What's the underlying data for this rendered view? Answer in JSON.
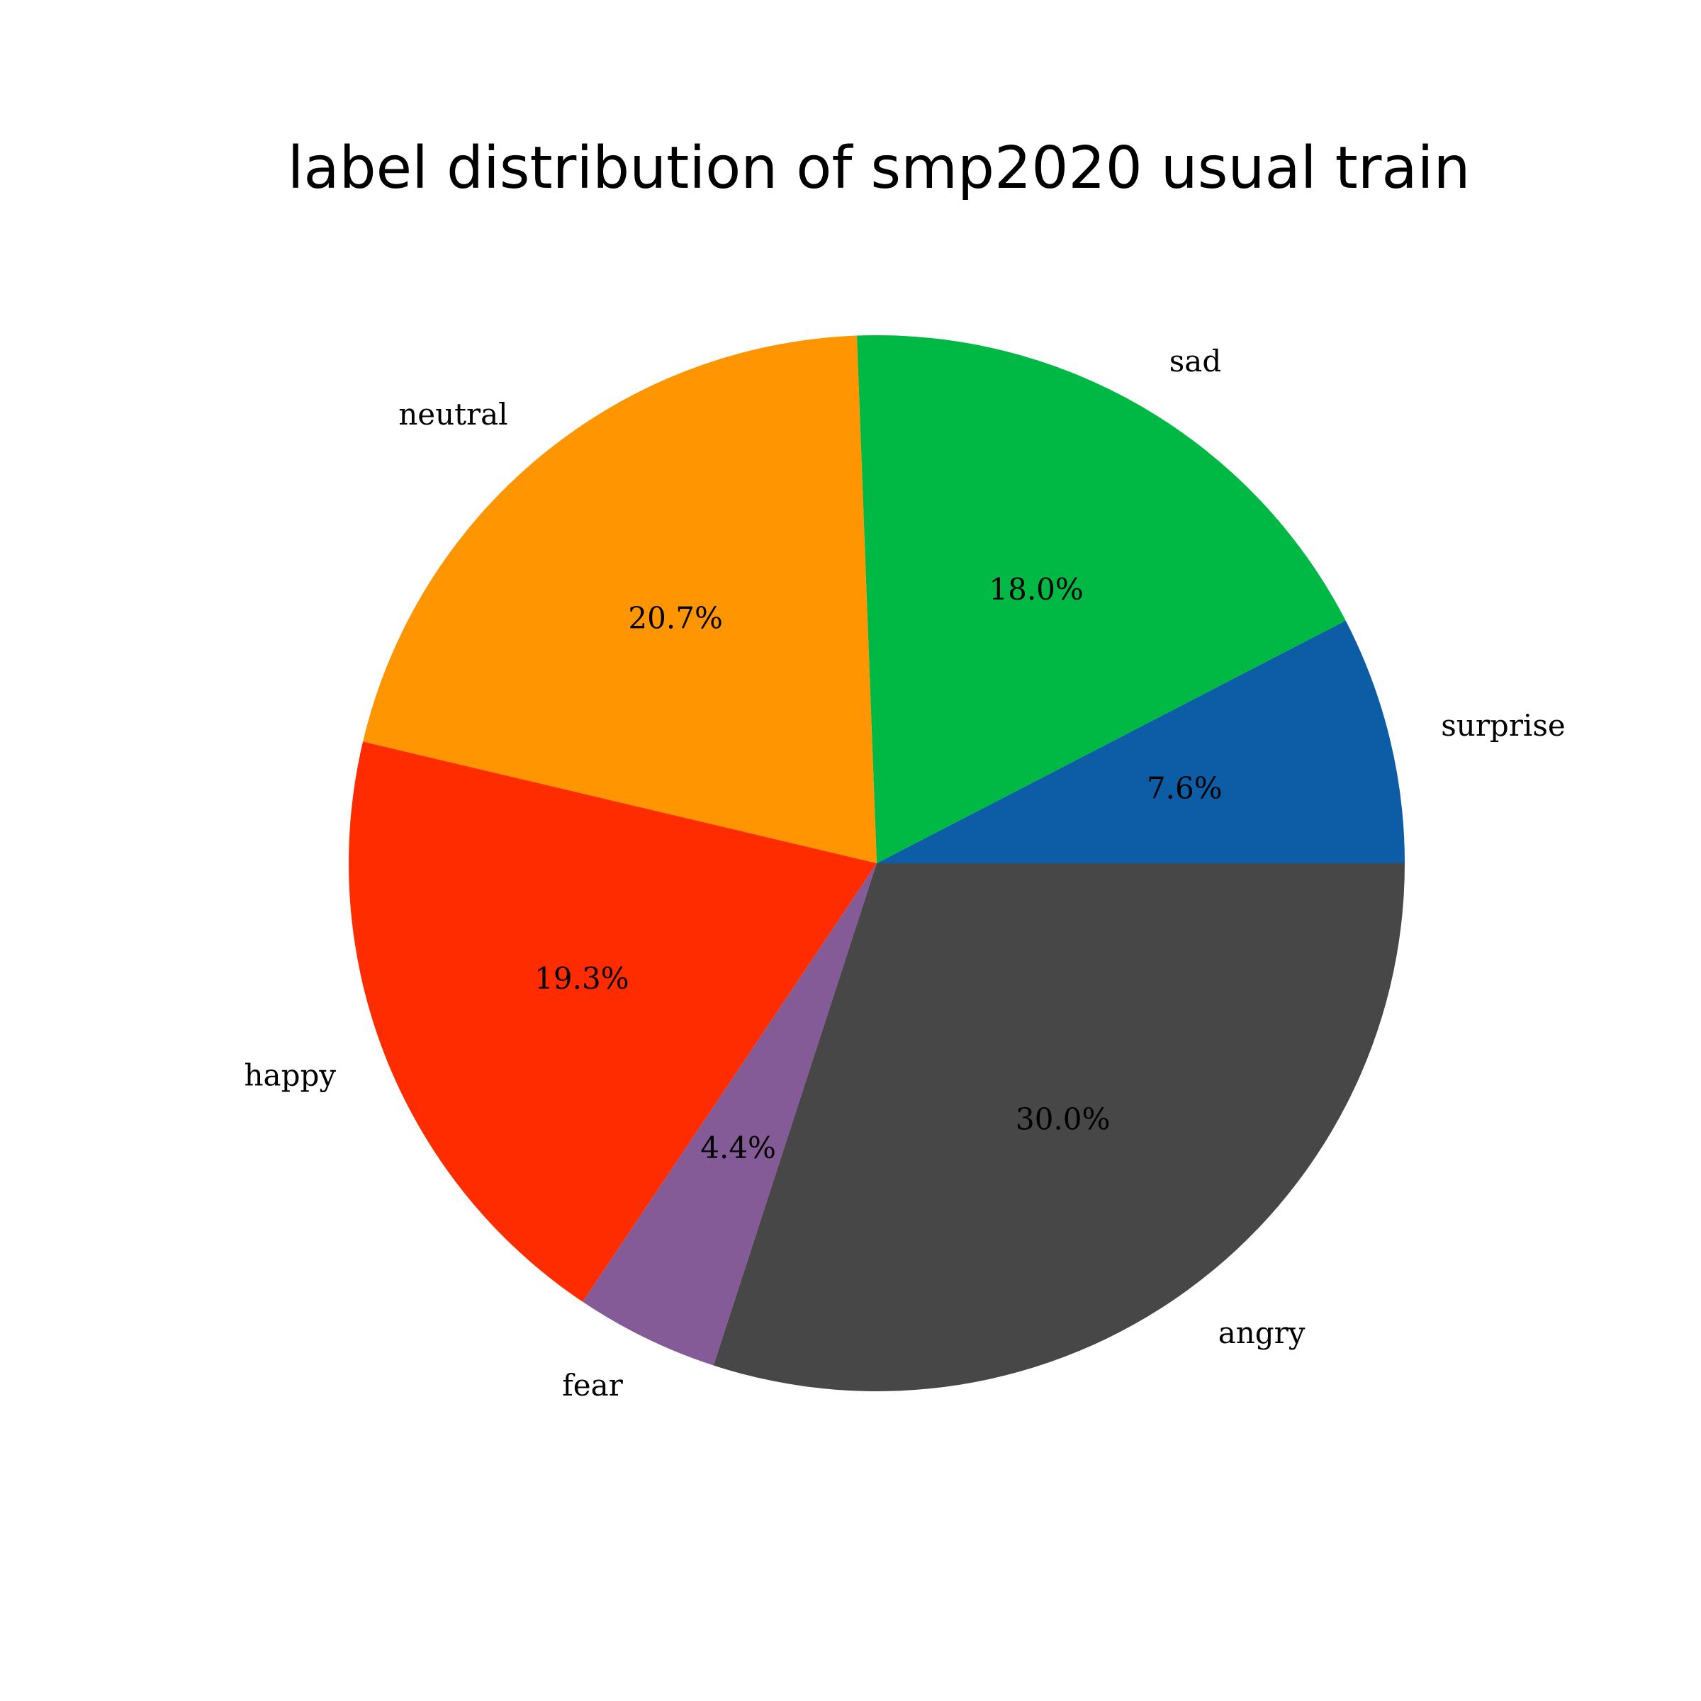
{
  "chart_data": {
    "type": "pie",
    "title": "label distribution of smp2020 usual train",
    "start_angle_deg": 0,
    "direction": "counterclockwise",
    "slices": [
      {
        "label": "surprise",
        "value": 7.6,
        "pct_text": "7.6%",
        "color": "#0c5da5"
      },
      {
        "label": "sad",
        "value": 18.0,
        "pct_text": "18.0%",
        "color": "#00b945"
      },
      {
        "label": "neutral",
        "value": 20.7,
        "pct_text": "20.7%",
        "color": "#ff9500"
      },
      {
        "label": "happy",
        "value": 19.3,
        "pct_text": "19.3%",
        "color": "#ff2c00"
      },
      {
        "label": "fear",
        "value": 4.4,
        "pct_text": "4.4%",
        "color": "#845b97"
      },
      {
        "label": "angry",
        "value": 30.0,
        "pct_text": "30.0%",
        "color": "#474747"
      }
    ]
  }
}
